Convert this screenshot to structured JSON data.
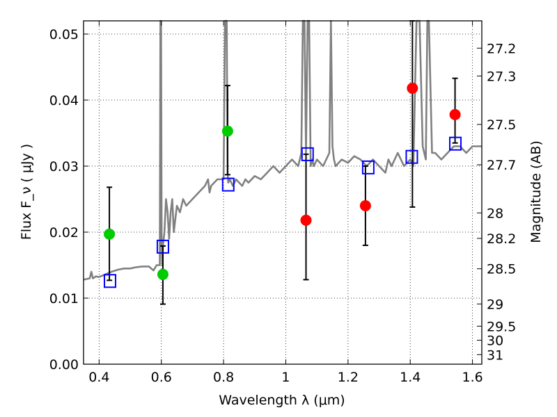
{
  "chart_data": {
    "type": "scatter",
    "title": "",
    "xlabel": "Wavelength  λ (μm)",
    "ylabel": "Flux  F_ν  ( μJy )",
    "y2label": "Magnitude (AB)",
    "xlim": [
      0.35,
      1.63
    ],
    "ylim": [
      0.0,
      0.052
    ],
    "grid": true,
    "x_ticks": [
      0.4,
      0.6,
      0.8,
      1.0,
      1.2,
      1.4,
      1.6
    ],
    "x_tick_labels": [
      "0.4",
      "0.6",
      "0.8",
      "1",
      "1.2",
      "1.4",
      "1.6"
    ],
    "y_ticks": [
      0.0,
      0.01,
      0.02,
      0.03,
      0.04,
      0.05
    ],
    "y_tick_labels": [
      "0.00",
      "0.01",
      "0.02",
      "0.03",
      "0.04",
      "0.05"
    ],
    "mag_ticks": [
      27.2,
      27.3,
      27.5,
      27.7,
      28,
      28.2,
      28.5,
      29,
      29.5,
      30,
      31
    ],
    "mag_tick_labels": [
      "27.2",
      "27.3",
      "27.5",
      "27.7",
      "28",
      "28.2",
      "28.5",
      "29",
      "29.5",
      "30",
      "31"
    ],
    "colors": {
      "spectrum": "#808080",
      "green_points": "#00cc00",
      "red_points": "#ff0000",
      "model_squares": "#0000ff",
      "error_bars": "#000000"
    },
    "series": [
      {
        "kind": "model-spectrum",
        "x": [
          0.35,
          0.37,
          0.375,
          0.38,
          0.39,
          0.4,
          0.42,
          0.44,
          0.46,
          0.48,
          0.5,
          0.52,
          0.54,
          0.56,
          0.575,
          0.585,
          0.595,
          0.597,
          0.599,
          0.601,
          0.603,
          0.605,
          0.61,
          0.615,
          0.62,
          0.625,
          0.63,
          0.635,
          0.64,
          0.65,
          0.66,
          0.67,
          0.68,
          0.7,
          0.72,
          0.74,
          0.75,
          0.755,
          0.76,
          0.78,
          0.8,
          0.805,
          0.807,
          0.81,
          0.813,
          0.815,
          0.82,
          0.83,
          0.84,
          0.86,
          0.87,
          0.88,
          0.9,
          0.92,
          0.94,
          0.96,
          0.98,
          1.0,
          1.02,
          1.04,
          1.05,
          1.055,
          1.06,
          1.065,
          1.07,
          1.075,
          1.08,
          1.085,
          1.09,
          1.1,
          1.12,
          1.14,
          1.145,
          1.15,
          1.155,
          1.16,
          1.18,
          1.2,
          1.22,
          1.24,
          1.26,
          1.28,
          1.3,
          1.32,
          1.33,
          1.34,
          1.36,
          1.38,
          1.4,
          1.41,
          1.42,
          1.43,
          1.44,
          1.45,
          1.455,
          1.46,
          1.47,
          1.48,
          1.5,
          1.52,
          1.54,
          1.56,
          1.58,
          1.6,
          1.62,
          1.63
        ],
        "y": [
          0.0128,
          0.013,
          0.014,
          0.013,
          0.0133,
          0.0132,
          0.0136,
          0.014,
          0.0143,
          0.0145,
          0.0145,
          0.0147,
          0.0148,
          0.0148,
          0.0142,
          0.015,
          0.015,
          0.052,
          0.052,
          0.018,
          0.015,
          0.018,
          0.02,
          0.025,
          0.023,
          0.019,
          0.023,
          0.025,
          0.02,
          0.024,
          0.023,
          0.025,
          0.024,
          0.025,
          0.026,
          0.027,
          0.028,
          0.026,
          0.027,
          0.028,
          0.028,
          0.052,
          0.052,
          0.052,
          0.029,
          0.0275,
          0.028,
          0.027,
          0.028,
          0.027,
          0.028,
          0.0275,
          0.0285,
          0.028,
          0.029,
          0.03,
          0.029,
          0.03,
          0.031,
          0.03,
          0.032,
          0.052,
          0.052,
          0.032,
          0.052,
          0.052,
          0.03,
          0.031,
          0.03,
          0.031,
          0.03,
          0.032,
          0.052,
          0.033,
          0.031,
          0.03,
          0.031,
          0.0305,
          0.0315,
          0.031,
          0.03,
          0.031,
          0.03,
          0.029,
          0.031,
          0.03,
          0.032,
          0.03,
          0.031,
          0.03,
          0.052,
          0.052,
          0.033,
          0.031,
          0.052,
          0.052,
          0.032,
          0.032,
          0.031,
          0.032,
          0.033,
          0.033,
          0.032,
          0.033,
          0.033,
          0.033
        ]
      },
      {
        "kind": "observed-green",
        "x": [
          0.433,
          0.605,
          0.813
        ],
        "y": [
          0.0197,
          0.0136,
          0.0353
        ],
        "yerr_low": [
          0.0127,
          0.0091,
          0.0287
        ],
        "yerr_high": [
          0.0268,
          0.0179,
          0.0422
        ]
      },
      {
        "kind": "observed-red",
        "x": [
          1.065,
          1.256,
          1.407,
          1.544
        ],
        "y": [
          0.0218,
          0.024,
          0.0418,
          0.0378
        ],
        "yerr_low": [
          0.0128,
          0.018,
          0.0238,
          0.0335
        ],
        "yerr_high": [
          0.0318,
          0.03,
          0.052,
          0.0433
        ]
      },
      {
        "kind": "model-photometry",
        "x": [
          0.435,
          0.605,
          0.815,
          1.07,
          1.265,
          1.405,
          1.545
        ],
        "y": [
          0.0126,
          0.0178,
          0.0272,
          0.0318,
          0.0298,
          0.0314,
          0.0334
        ]
      }
    ]
  }
}
